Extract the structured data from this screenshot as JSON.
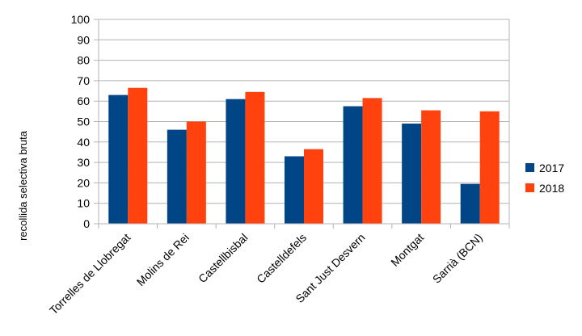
{
  "chart_data": {
    "type": "bar",
    "title": "",
    "xlabel": "",
    "ylabel": "recollida selectiva bruta",
    "ylim": [
      0,
      100
    ],
    "yticks": [
      0,
      10,
      20,
      30,
      40,
      50,
      60,
      70,
      80,
      90,
      100
    ],
    "grid": true,
    "legend_position": "right",
    "categories": [
      "Torrelles de Llobregat",
      "Molins de Rei",
      "Castellbisbal",
      "Castelldefels",
      "Sant Just Desvern",
      "Montgat",
      "Sarrià (BCN)"
    ],
    "series": [
      {
        "name": "2017",
        "color": "#004586",
        "values": [
          63,
          46,
          61,
          33,
          57.5,
          49,
          19.5
        ]
      },
      {
        "name": "2018",
        "color": "#ff420e",
        "values": [
          66.5,
          50,
          64.5,
          36.5,
          61.5,
          55.5,
          55
        ]
      }
    ]
  }
}
